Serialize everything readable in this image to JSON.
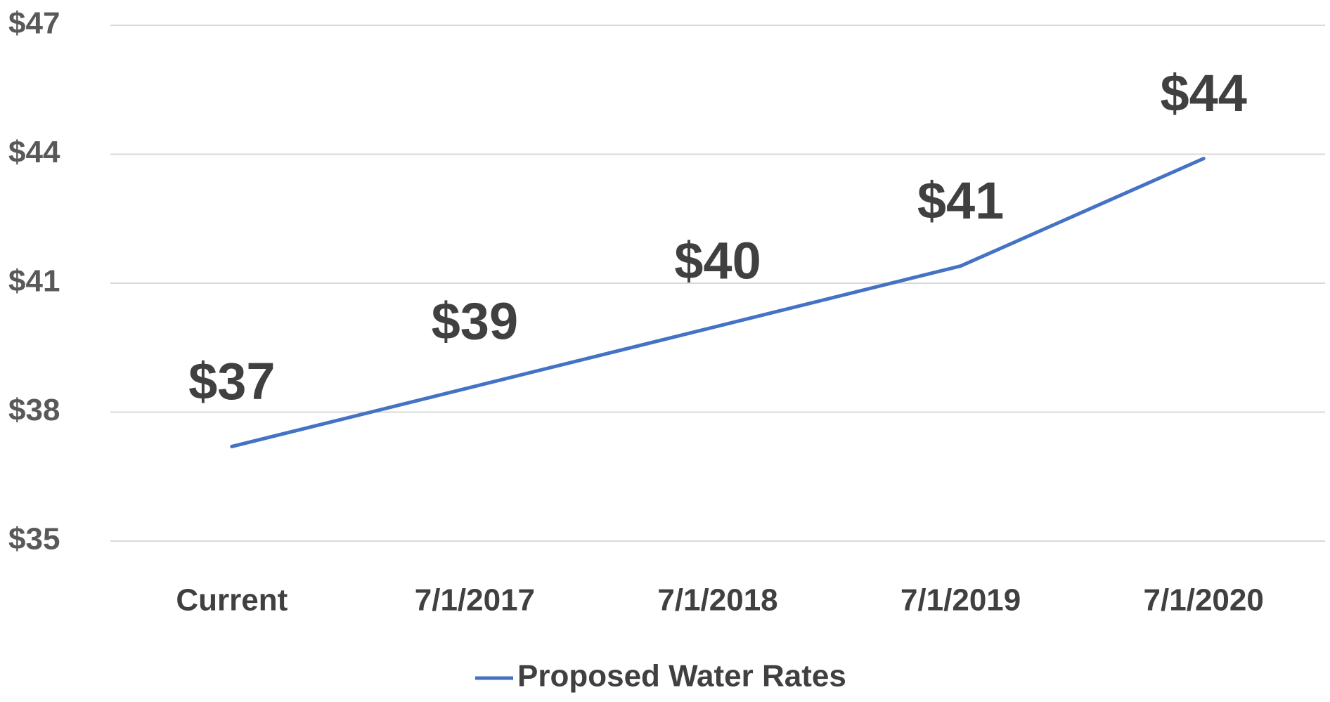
{
  "chart_data": {
    "type": "line",
    "categories": [
      "Current",
      "7/1/2017",
      "7/1/2018",
      "7/1/2019",
      "7/1/2020"
    ],
    "series": [
      {
        "name": "Proposed Water Rates",
        "color": "#4472c4",
        "values": [
          37.2,
          38.6,
          40.0,
          41.4,
          43.9
        ],
        "value_labels": [
          "$37",
          "$39",
          "$40",
          "$41",
          "$44"
        ]
      }
    ],
    "ylim": [
      35,
      47
    ],
    "yticks": [
      {
        "value": 35,
        "label": "$35"
      },
      {
        "value": 38,
        "label": "$38"
      },
      {
        "value": 41,
        "label": "$41"
      },
      {
        "value": 44,
        "label": "$44"
      },
      {
        "value": 47,
        "label": "$47"
      }
    ],
    "grid": true,
    "legend": "bottom"
  }
}
